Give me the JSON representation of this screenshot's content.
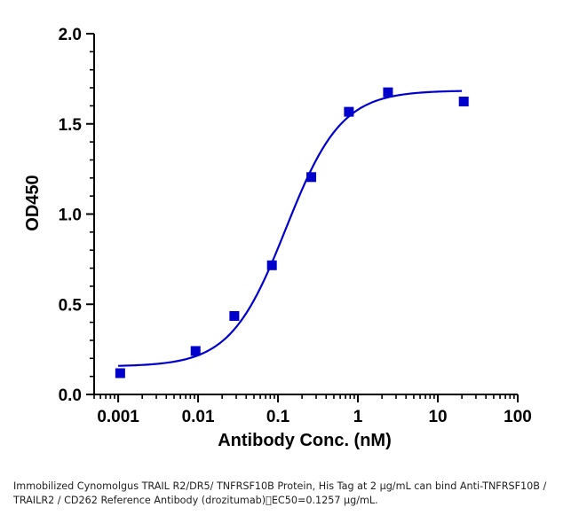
{
  "chart_data": {
    "type": "scatter",
    "title": "",
    "xlabel": "Antibody Conc. (nM)",
    "ylabel": "OD450",
    "x_scale": "log",
    "xlim": [
      0.0005,
      100
    ],
    "ylim": [
      0,
      2.0
    ],
    "x_ticks": [
      0.001,
      0.01,
      0.1,
      1,
      10,
      100
    ],
    "x_tick_labels": [
      "0.001",
      "0.01",
      "0.1",
      "1",
      "10",
      "100"
    ],
    "y_ticks": [
      0,
      0.5,
      1.0,
      1.5,
      2.0
    ],
    "y_tick_labels": [
      "0.0",
      "0.5",
      "1.0",
      "1.5",
      "2.0"
    ],
    "grid": false,
    "color": "#0000cc",
    "points": [
      {
        "x": 0.00106,
        "y": 0.118
      },
      {
        "x": 0.0093,
        "y": 0.241
      },
      {
        "x": 0.0284,
        "y": 0.435
      },
      {
        "x": 0.0839,
        "y": 0.716
      },
      {
        "x": 0.261,
        "y": 1.205
      },
      {
        "x": 0.771,
        "y": 1.567
      },
      {
        "x": 2.38,
        "y": 1.675
      },
      {
        "x": 21.1,
        "y": 1.624
      }
    ],
    "fit_curve": {
      "model": "4PL",
      "bottom": 0.155,
      "top": 1.685,
      "ec50": 0.1257,
      "hill": 1.25,
      "x_range": [
        0.001,
        20
      ]
    }
  },
  "caption": "Immobilized Cynomolgus TRAIL R2/DR5/ TNFRSF10B Protein, His Tag at 2 μg/mL can bind  Anti-TNFRSF10B / TRAILR2 / CD262 Reference Antibody (drozitumab)\u0000EC50=0.1257 μg/mL."
}
